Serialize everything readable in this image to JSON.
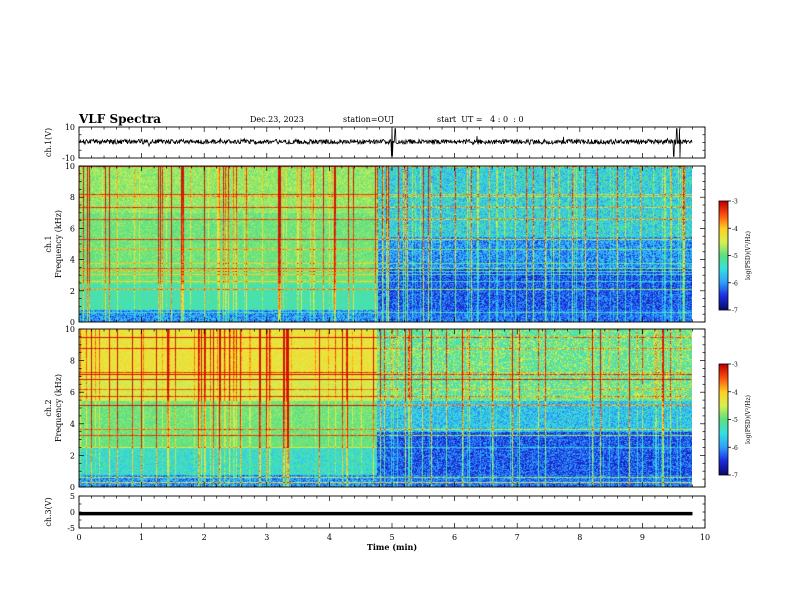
{
  "header": {
    "title": "VLF Spectra",
    "date": "Dec.23, 2023",
    "station": "station=OUJ",
    "start_ut": "start  UT =   4 : 0  : 0"
  },
  "colors": {
    "ch1_trace": "#000000",
    "ch3_trace": "#000000",
    "background": "#ffffff",
    "colormap": [
      "#0a0a6e",
      "#1a2de0",
      "#2fa0ff",
      "#35e0e0",
      "#5ae080",
      "#d8f050",
      "#ffd020",
      "#ff5010",
      "#c00000",
      "#ffffff"
    ]
  },
  "chart_data": [
    {
      "type": "line",
      "panel": "ch1",
      "ylabel": "ch.1(V)",
      "ylim": [
        -10,
        10
      ],
      "y_ticks": [
        "10",
        "-10"
      ],
      "xlim": [
        0,
        10
      ],
      "description_values": {
        "baseline_V": 0.5,
        "noise_amplitude_V": 1.5,
        "spike_times_min": [
          5.0,
          5.05,
          9.5,
          9.55,
          9.6
        ]
      }
    },
    {
      "type": "heatmap",
      "panel": "ch1-spectrogram",
      "ylabel": "ch.1\nFrequency (kHz)",
      "ylabel_line1": "ch.1",
      "ylabel_line2": "Frequency (kHz)",
      "ylim": [
        0,
        10
      ],
      "y_ticks": [
        "0",
        "2",
        "4",
        "6",
        "8",
        "10"
      ],
      "xlim": [
        0,
        10
      ],
      "data_end_min": 9.8,
      "transition_time_min": 4.75,
      "colorbar": {
        "label": "log(PSD)(V²/Hz)",
        "range": [
          -7,
          -3
        ],
        "ticks": [
          "-3",
          "-4",
          "-5",
          "-6",
          "-7"
        ]
      }
    },
    {
      "type": "heatmap",
      "panel": "ch2-spectrogram",
      "ylabel": "ch.2\nFrequency (kHz)",
      "ylabel_line1": "ch.2",
      "ylabel_line2": "Frequency (kHz)",
      "ylim": [
        0,
        10
      ],
      "y_ticks": [
        "0",
        "2",
        "4",
        "6",
        "8",
        "10"
      ],
      "xlim": [
        0,
        10
      ],
      "data_end_min": 9.8,
      "transition_time_min": 4.75,
      "colorbar": {
        "label": "log(PSD)(V²/Hz)",
        "range": [
          -7,
          -3
        ],
        "ticks": [
          "-3",
          "-4",
          "-5",
          "-6",
          "-7"
        ]
      }
    },
    {
      "type": "line",
      "panel": "ch3",
      "ylabel": "ch.3(V)",
      "ylim": [
        -5,
        5
      ],
      "y_ticks": [
        "5",
        "0",
        "-5"
      ],
      "xlim": [
        0,
        10
      ],
      "description_values": {
        "constant_V": -0.5
      },
      "xlabel": "Time (min)",
      "x_ticks": [
        "0",
        "1",
        "2",
        "3",
        "4",
        "5",
        "6",
        "7",
        "8",
        "9",
        "10"
      ]
    }
  ]
}
